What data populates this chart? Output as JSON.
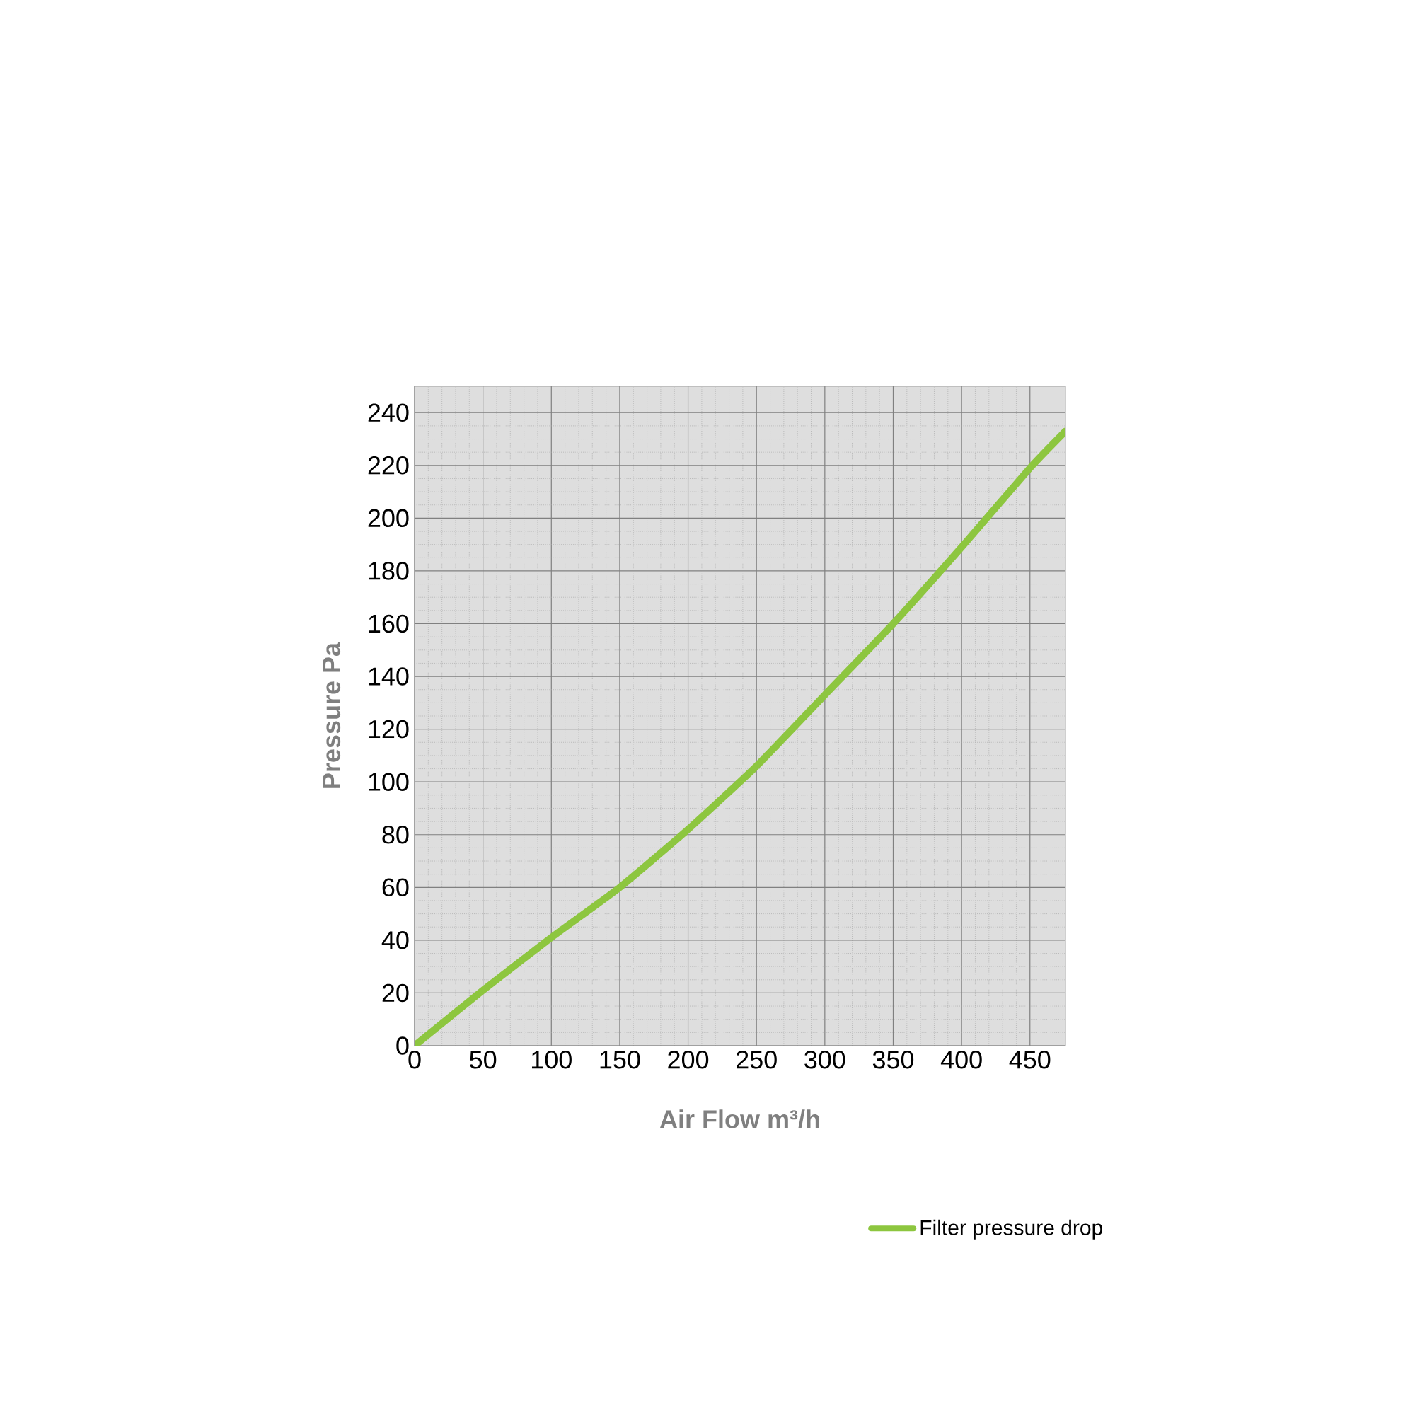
{
  "chart_data": {
    "type": "line",
    "xlabel": "Air Flow m³/h",
    "ylabel": "Pressure Pa",
    "x": [
      0,
      50,
      100,
      150,
      200,
      250,
      300,
      350,
      400,
      450,
      476
    ],
    "series": [
      {
        "name": "Filter pressure drop",
        "color": "#8dc63f",
        "values": [
          0,
          21,
          41,
          60,
          82,
          106,
          133,
          160,
          189,
          219,
          233
        ]
      }
    ],
    "xlim": [
      0,
      476
    ],
    "ylim": [
      0,
      250
    ],
    "xticks": [
      0,
      50,
      100,
      150,
      200,
      250,
      300,
      350,
      400,
      450
    ],
    "yticks": [
      0,
      20,
      40,
      60,
      80,
      100,
      120,
      140,
      160,
      180,
      200,
      220,
      240
    ],
    "grid": true,
    "legend": "bottom right"
  }
}
